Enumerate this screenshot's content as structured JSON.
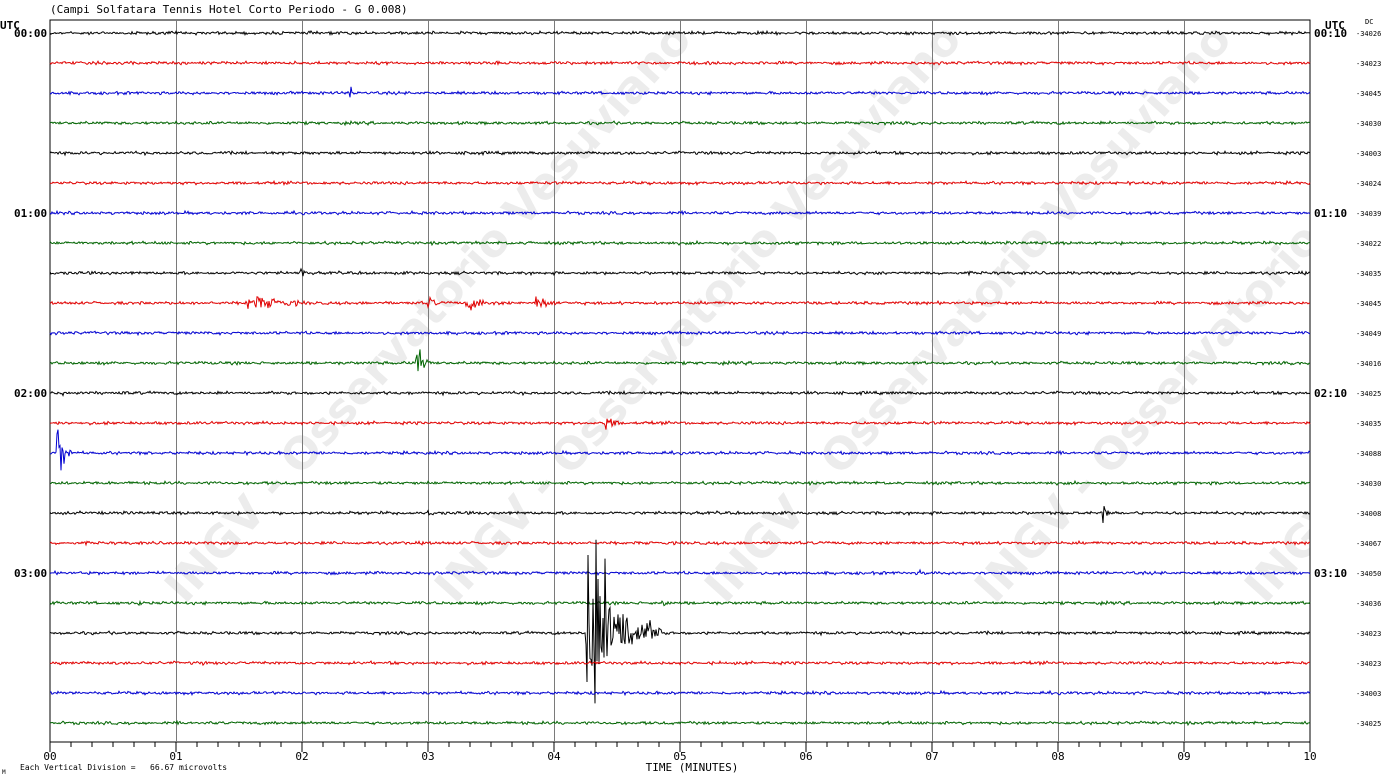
{
  "title": "(Campi Solfatara Tennis Hotel Corto Periodo - G 0.008)",
  "left_header": "UTC",
  "right_header": "UTC",
  "dc_header": "DC",
  "xlabel": "TIME (MINUTES)",
  "footer_scale": "Each Vertical Division =   66.67 microvolts",
  "footer_mark": "M",
  "watermark": "INGV - Osservatorio Vesuviano",
  "chart_data": {
    "type": "line",
    "x_ticks": [
      "00",
      "01",
      "02",
      "03",
      "04",
      "05",
      "06",
      "07",
      "08",
      "09",
      "10"
    ],
    "xlim": [
      0,
      10
    ],
    "trace_colors": [
      "#000000",
      "#e00000",
      "#0000d0",
      "#006400"
    ],
    "left_time_labels": [
      {
        "row": 0,
        "text": "00:00"
      },
      {
        "row": 6,
        "text": "01:00"
      },
      {
        "row": 12,
        "text": "02:00"
      },
      {
        "row": 18,
        "text": "03:00"
      }
    ],
    "right_time_labels": [
      {
        "row": 0,
        "text": "00:10"
      },
      {
        "row": 6,
        "text": "01:10"
      },
      {
        "row": 12,
        "text": "02:10"
      },
      {
        "row": 18,
        "text": "03:10"
      }
    ],
    "dc_values": [
      "-34026",
      "-34023",
      "-34045",
      "-34030",
      "-34003",
      "-34024",
      "-34039",
      "-34022",
      "-34035",
      "-34045",
      "-34049",
      "-34016",
      "-34025",
      "-34035",
      "-34088",
      "-34030",
      "-34008",
      "-34067",
      "-34050",
      "-34036",
      "-34023",
      "-34023",
      "-34003",
      "-34025"
    ],
    "events": [
      {
        "row": 2,
        "t": 2.38,
        "dur": 0.15,
        "amp": 7
      },
      {
        "row": 4,
        "t": 3.3,
        "dur": 0.5,
        "amp": 3
      },
      {
        "row": 4,
        "t": 4.55,
        "dur": 0.15,
        "amp": 3
      },
      {
        "row": 6,
        "t": 1.15,
        "dur": 0.1,
        "amp": 3
      },
      {
        "row": 7,
        "t": 3.8,
        "dur": 0.3,
        "amp": 3
      },
      {
        "row": 8,
        "t": 1.98,
        "dur": 0.1,
        "amp": 9
      },
      {
        "row": 9,
        "t": 1.55,
        "dur": 0.95,
        "amp": 9
      },
      {
        "row": 9,
        "t": 3.0,
        "dur": 0.15,
        "amp": 9
      },
      {
        "row": 9,
        "t": 3.3,
        "dur": 0.55,
        "amp": 8
      },
      {
        "row": 9,
        "t": 3.85,
        "dur": 0.4,
        "amp": 8
      },
      {
        "row": 11,
        "t": 2.9,
        "dur": 0.15,
        "amp": 28
      },
      {
        "row": 12,
        "t": 0.1,
        "dur": 0.1,
        "amp": 8
      },
      {
        "row": 12,
        "t": 0.5,
        "dur": 0.5,
        "amp": 3
      },
      {
        "row": 13,
        "t": 4.4,
        "dur": 0.2,
        "amp": 12
      },
      {
        "row": 14,
        "t": 0.05,
        "dur": 0.15,
        "amp": 38
      },
      {
        "row": 16,
        "t": 8.35,
        "dur": 0.08,
        "amp": 18
      },
      {
        "row": 16,
        "t": 3.0,
        "dur": 0.3,
        "amp": 3
      },
      {
        "row": 18,
        "t": 6.9,
        "dur": 0.3,
        "amp": 3
      },
      {
        "row": 19,
        "t": 0.7,
        "dur": 0.2,
        "amp": 3
      },
      {
        "row": 19,
        "t": 4.85,
        "dur": 0.2,
        "amp": 5
      },
      {
        "row": 20,
        "t": 4.25,
        "dur": 0.6,
        "amp": 130
      },
      {
        "row": 21,
        "t": 0.05,
        "dur": 0.2,
        "amp": 3
      },
      {
        "row": 21,
        "t": 1.2,
        "dur": 0.15,
        "amp": 3
      }
    ]
  }
}
